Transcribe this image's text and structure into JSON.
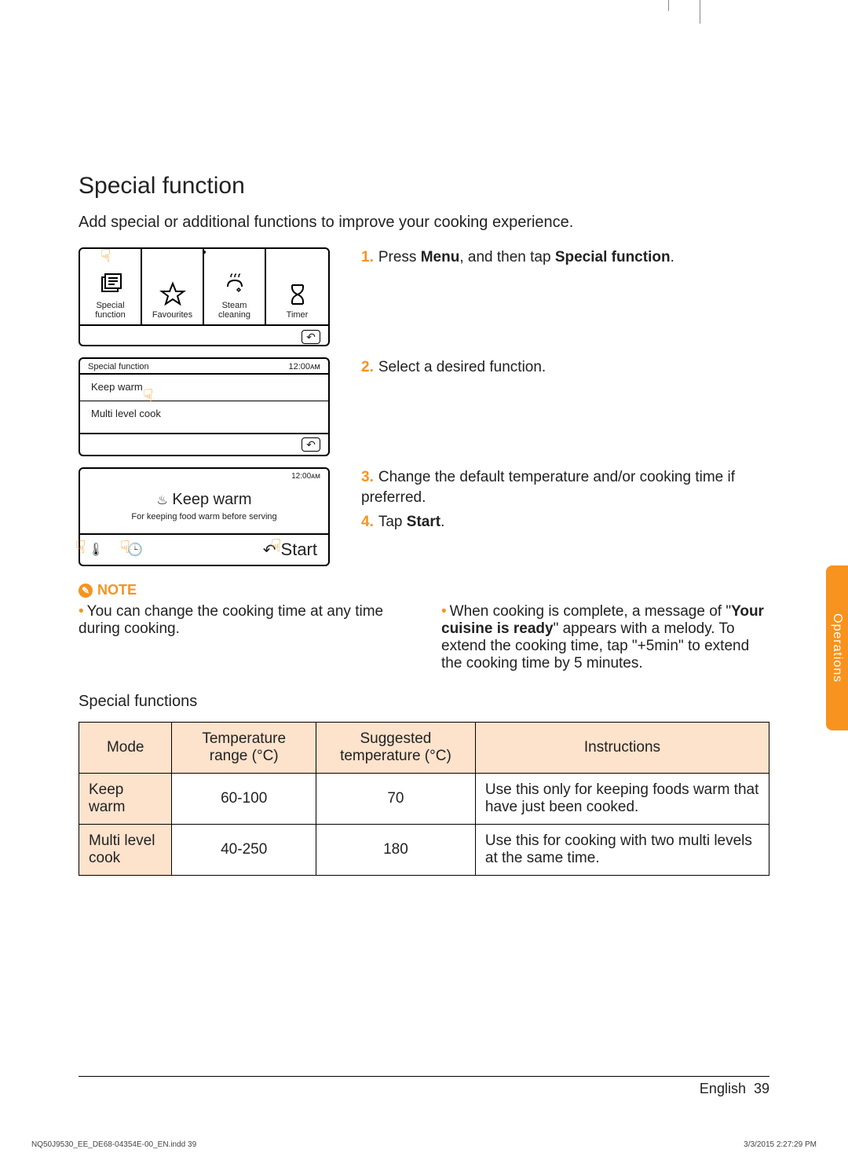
{
  "title": "Special function",
  "lead": "Add special or additional functions to improve your cooking experience.",
  "panel1": {
    "cells": [
      {
        "label": "Special\nfunction"
      },
      {
        "label": "Favourites"
      },
      {
        "label": "Steam\ncleaning"
      },
      {
        "label": "Timer"
      }
    ]
  },
  "panel2": {
    "header": "Special function",
    "time": "12:00ᴀᴍ",
    "items": [
      "Keep warm",
      "Multi level cook"
    ]
  },
  "panel3": {
    "time": "12:00ᴀᴍ",
    "title": "Keep warm",
    "subtitle": "For keeping food warm before serving",
    "start": "Start"
  },
  "steps": {
    "s1a": "Press ",
    "s1b": "Menu",
    "s1c": ", and then tap ",
    "s1d": "Special function",
    "s1e": ".",
    "s2": "Select a desired function.",
    "s3": "Change the default temperature and/or cooking time if preferred.",
    "s4a": "Tap ",
    "s4b": "Start",
    "s4c": "."
  },
  "noteLabel": "NOTE",
  "noteLeft": "You can change the cooking time at any time during cooking.",
  "noteRight_a": "When cooking is complete, a message of \"",
  "noteRight_b": "Your cuisine is ready",
  "noteRight_c": "\" appears with a melody. To extend the cooking time, tap \"+5min\" to extend the cooking time by 5 minutes.",
  "sfTitle": "Special functions",
  "table": {
    "headers": [
      "Mode",
      "Temperature range (°C)",
      "Suggested temperature (°C)",
      "Instructions"
    ],
    "rows": [
      {
        "mode": "Keep warm",
        "range": "60-100",
        "sugg": "70",
        "instr": "Use this only for keeping foods warm that have just been cooked."
      },
      {
        "mode": "Multi level cook",
        "range": "40-250",
        "sugg": "180",
        "instr": "Use this for cooking with two multi levels at the same time."
      }
    ]
  },
  "sideTab": "Operations",
  "footerLang": "English",
  "footerPage": "39",
  "indd": "NQ50J9530_EE_DE68-04354E-00_EN.indd   39",
  "inddTime": "3/3/2015   2:27:29 PM",
  "colors": {
    "accent": "#f7931e",
    "headerBg": "#fde2cc"
  }
}
